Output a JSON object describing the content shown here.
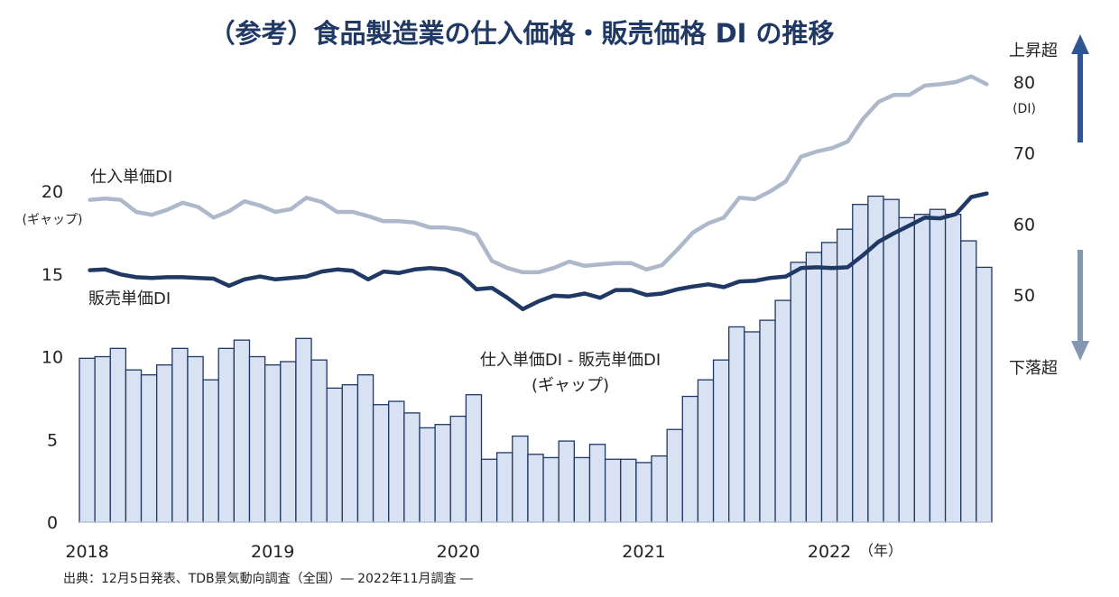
{
  "chart_data": {
    "type": "bar+line",
    "title": "（参考）食品製造業の仕入価格・販売価格 DI の推移",
    "x_tick_labels": [
      "2018",
      "2019",
      "2020",
      "2021",
      "2022"
    ],
    "x_unit": "（年）",
    "period": "2018-01 to 2022-11 (monthly)",
    "left_axis": {
      "unit": "(ギャップ)",
      "ticks": [
        0,
        5,
        10,
        15,
        20
      ]
    },
    "right_axis": {
      "unit": "(DI)",
      "ticks": [
        50,
        60,
        70,
        80
      ],
      "up_label": "上昇超",
      "down_label": "下落超"
    },
    "series": [
      {
        "name": "仕入単価DI - 販売単価DI",
        "name_sub": "(ギャップ)",
        "kind": "bar",
        "axis": "left",
        "color": "#d9e2f3",
        "edge": "#1f3864",
        "values": [
          9.9,
          10.0,
          10.5,
          9.2,
          8.9,
          9.5,
          10.5,
          10.0,
          8.6,
          10.5,
          11.0,
          10.0,
          9.5,
          9.7,
          11.1,
          9.8,
          8.1,
          8.3,
          8.9,
          7.1,
          7.3,
          6.6,
          5.7,
          5.9,
          6.4,
          7.7,
          3.8,
          4.2,
          5.2,
          4.1,
          3.9,
          4.9,
          3.9,
          4.7,
          3.8,
          3.8,
          3.6,
          4.0,
          5.6,
          7.6,
          8.6,
          9.8,
          11.8,
          11.5,
          12.2,
          13.4,
          15.7,
          16.3,
          16.9,
          17.7,
          19.2,
          19.7,
          19.5,
          18.4,
          18.6,
          18.9,
          18.6,
          17.0,
          15.4
        ]
      },
      {
        "name": "仕入単価DI",
        "kind": "line",
        "axis": "right",
        "color": "#adb9ca",
        "values": [
          63.4,
          63.6,
          63.4,
          61.7,
          61.3,
          62.0,
          63.0,
          62.4,
          60.9,
          61.8,
          63.2,
          62.6,
          61.7,
          62.1,
          63.7,
          63.1,
          61.7,
          61.7,
          61.1,
          60.4,
          60.4,
          60.2,
          59.5,
          59.5,
          59.2,
          58.5,
          54.8,
          53.8,
          53.2,
          53.2,
          53.8,
          54.7,
          54.1,
          54.3,
          54.5,
          54.5,
          53.6,
          54.2,
          56.4,
          58.8,
          60.1,
          60.9,
          63.7,
          63.5,
          64.6,
          66.0,
          69.5,
          70.2,
          70.7,
          71.6,
          74.8,
          77.2,
          78.2,
          78.2,
          79.5,
          79.7,
          80.0,
          80.8,
          79.7
        ]
      },
      {
        "name": "販売単価DI",
        "kind": "line",
        "axis": "right",
        "color": "#1f3864",
        "values": [
          53.5,
          53.6,
          52.9,
          52.5,
          52.4,
          52.5,
          52.5,
          52.4,
          52.3,
          51.3,
          52.2,
          52.6,
          52.2,
          52.4,
          52.6,
          53.3,
          53.6,
          53.4,
          52.2,
          53.3,
          53.1,
          53.6,
          53.8,
          53.6,
          52.8,
          50.8,
          51.0,
          49.6,
          48.0,
          49.1,
          49.9,
          49.8,
          50.2,
          49.6,
          50.7,
          50.7,
          50.0,
          50.2,
          50.8,
          51.2,
          51.5,
          51.1,
          51.9,
          52.0,
          52.4,
          52.6,
          53.8,
          53.9,
          53.8,
          53.9,
          55.6,
          57.5,
          58.7,
          59.8,
          60.9,
          60.8,
          61.4,
          63.8,
          64.3
        ]
      }
    ],
    "arrow_colors": {
      "up": "#2f5597",
      "down": "#8497b0"
    },
    "grid": false
  },
  "footer": {
    "source": "出典：12月5日発表、TDB景気動向調査（全国）― 2022年11月調査 ―"
  }
}
